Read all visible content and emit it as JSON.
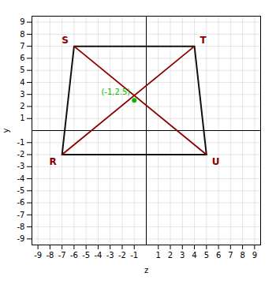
{
  "chart_data": {
    "type": "polygon",
    "xlabel": "z",
    "ylabel": "y",
    "xlim": [
      -9.5,
      9.5
    ],
    "ylim": [
      -9.5,
      9.5
    ],
    "xticks": [
      -9,
      -8,
      -7,
      -6,
      -5,
      -4,
      -3,
      -2,
      -1,
      1,
      2,
      3,
      4,
      5,
      6,
      7,
      8,
      9
    ],
    "yticks": [
      -9,
      -8,
      -7,
      -6,
      -5,
      -4,
      -3,
      -2,
      -1,
      1,
      2,
      3,
      4,
      5,
      6,
      7,
      8,
      9
    ],
    "grid": true,
    "series": [
      {
        "type": "polygon",
        "color": "#111111",
        "x": [
          -6,
          4,
          5,
          -7
        ],
        "y": [
          7,
          7,
          -2,
          -2
        ]
      },
      {
        "type": "line",
        "color": "#8B0000",
        "x": [
          -6,
          5
        ],
        "y": [
          7,
          -2
        ]
      },
      {
        "type": "line",
        "color": "#8B0000",
        "x": [
          4,
          -7
        ],
        "y": [
          7,
          -2
        ]
      },
      {
        "type": "scatter",
        "color": "#00bb00",
        "x": [
          -1
        ],
        "y": [
          2.5
        ],
        "value_labels": [
          "(-1,2.5)"
        ]
      }
    ],
    "annotations": [
      {
        "text": "S",
        "x": -6,
        "y": 7,
        "color": "#8B0000"
      },
      {
        "text": "T",
        "x": 4,
        "y": 7,
        "color": "#8B0000"
      },
      {
        "text": "R",
        "x": -7,
        "y": -2,
        "color": "#8B0000"
      },
      {
        "text": "U",
        "x": 5,
        "y": -2,
        "color": "#8B0000"
      }
    ]
  }
}
